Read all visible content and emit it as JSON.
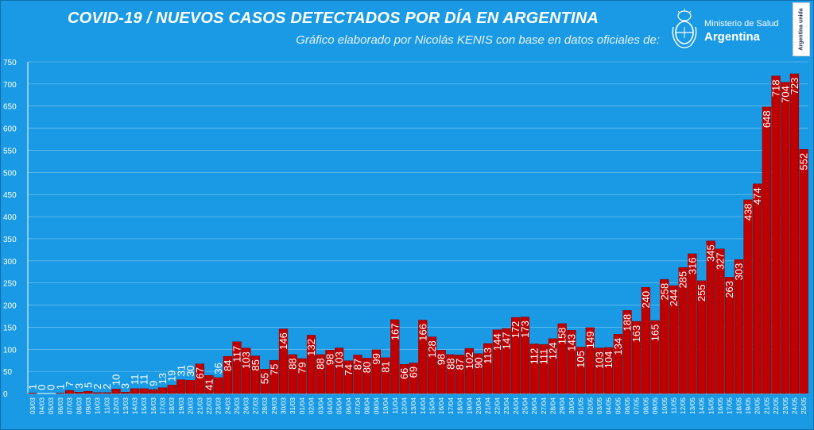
{
  "header": {
    "title": "COVID-19  /  NUEVOS CASOS DETECTADOS POR DÍA EN ARGENTINA",
    "subtitle": "Gráfico elaborado por Nicolás KENIS con base en datos oficiales de:"
  },
  "logo": {
    "line1": "Ministerio de Salud",
    "line2": "Argentina",
    "badge": "Argentina unida",
    "icon": "coat-of-arms-icon"
  },
  "colors": {
    "background": "#1a9ae4",
    "bar": "#c00000",
    "bar_border": "#7a0000",
    "text": "#ffffff",
    "grid": "#d9ecfa"
  },
  "chart_data": {
    "type": "bar",
    "title": "",
    "xlabel": "",
    "ylabel": "",
    "ylim": [
      0,
      750
    ],
    "yticks": [
      0,
      50,
      100,
      150,
      200,
      250,
      300,
      350,
      400,
      450,
      500,
      550,
      600,
      650,
      700,
      750
    ],
    "grid": true,
    "legend": "none",
    "categories": [
      "03/03",
      "04/03",
      "05/03",
      "06/03",
      "07/03",
      "08/03",
      "09/03",
      "10/03",
      "11/03",
      "12/03",
      "13/03",
      "14/03",
      "15/03",
      "16/03",
      "17/03",
      "18/03",
      "19/03",
      "20/03",
      "21/03",
      "22/03",
      "23/03",
      "24/03",
      "25/03",
      "26/03",
      "27/03",
      "28/03",
      "29/03",
      "30/03",
      "31/03",
      "01/04",
      "02/04",
      "03/04",
      "04/04",
      "05/04",
      "06/04",
      "07/04",
      "08/04",
      "09/04",
      "10/04",
      "11/04",
      "12/04",
      "13/04",
      "14/04",
      "15/04",
      "16/04",
      "17/04",
      "18/04",
      "19/04",
      "20/04",
      "21/04",
      "22/04",
      "23/04",
      "24/04",
      "25/04",
      "26/04",
      "27/04",
      "28/04",
      "29/04",
      "30/04",
      "01/05",
      "02/05",
      "03/05",
      "04/05",
      "05/05",
      "06/05",
      "07/05",
      "08/05",
      "09/05",
      "10/05",
      "11/05",
      "12/05",
      "13/05",
      "14/05",
      "15/05",
      "16/05",
      "17/05",
      "18/05",
      "19/05",
      "20/05",
      "21/05",
      "22/05",
      "23/05",
      "24/05",
      "25/05"
    ],
    "values": [
      1,
      0,
      0,
      1,
      7,
      3,
      5,
      2,
      2,
      10,
      3,
      11,
      11,
      9,
      13,
      19,
      31,
      30,
      67,
      41,
      36,
      84,
      117,
      103,
      85,
      55,
      75,
      146,
      88,
      79,
      132,
      88,
      98,
      103,
      74,
      87,
      80,
      99,
      81,
      167,
      66,
      69,
      166,
      128,
      98,
      88,
      87,
      102,
      90,
      113,
      144,
      147,
      172,
      173,
      112,
      111,
      124,
      158,
      143,
      105,
      149,
      103,
      104,
      134,
      188,
      163,
      240,
      165,
      258,
      244,
      285,
      316,
      255,
      345,
      327,
      263,
      303,
      438,
      474,
      648,
      718,
      704,
      723,
      552
    ]
  }
}
